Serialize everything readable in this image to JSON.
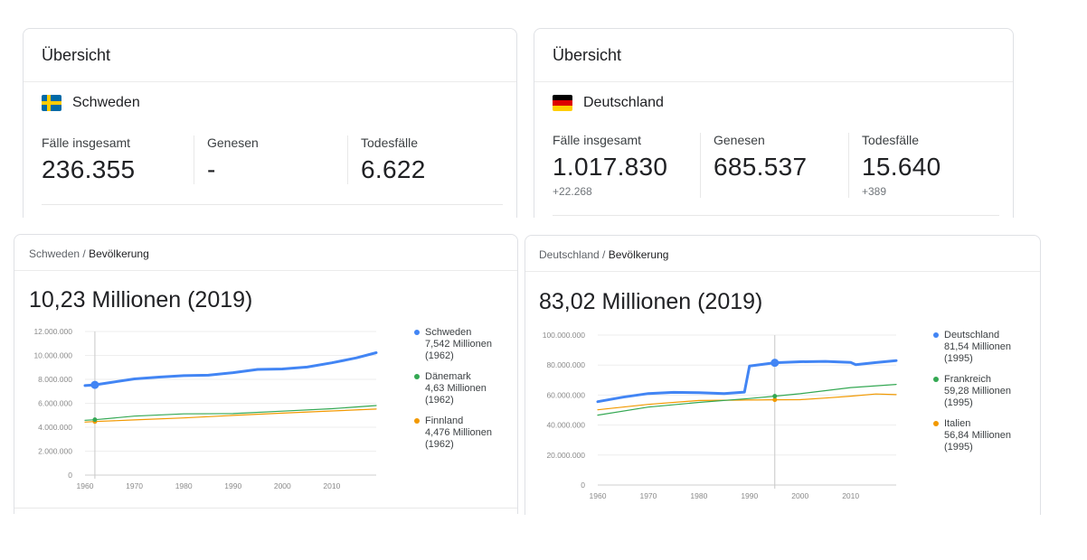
{
  "overview_se": {
    "title": "Übersicht",
    "country": "Schweden",
    "flag_icon": "sweden-flag-icon",
    "stats": [
      {
        "label": "Fälle insgesamt",
        "value": "236.355",
        "delta": ""
      },
      {
        "label": "Genesen",
        "value": "-",
        "delta": ""
      },
      {
        "label": "Todesfälle",
        "value": "6.622",
        "delta": ""
      }
    ]
  },
  "overview_de": {
    "title": "Übersicht",
    "country": "Deutschland",
    "flag_icon": "germany-flag-icon",
    "stats": [
      {
        "label": "Fälle insgesamt",
        "value": "1.017.830",
        "delta": "+22.268"
      },
      {
        "label": "Genesen",
        "value": "685.537",
        "delta": ""
      },
      {
        "label": "Todesfälle",
        "value": "15.640",
        "delta": "+389"
      }
    ]
  },
  "pop_se": {
    "breadcrumb_country": "Schweden",
    "breadcrumb_sep": " / ",
    "breadcrumb_topic": "Bevölkerung",
    "headline": "10,23 Millionen (2019)",
    "legend": [
      {
        "name": "Schweden",
        "value": "7,542 Millionen",
        "year": "(1962)",
        "color": "#4285f4"
      },
      {
        "name": "Dänemark",
        "value": "4,63 Millionen",
        "year": "(1962)",
        "color": "#34a853"
      },
      {
        "name": "Finnland",
        "value": "4,476 Millionen",
        "year": "(1962)",
        "color": "#f29900"
      }
    ]
  },
  "pop_de": {
    "breadcrumb_country": "Deutschland",
    "breadcrumb_sep": " / ",
    "breadcrumb_topic": "Bevölkerung",
    "headline": "83,02 Millionen (2019)",
    "legend": [
      {
        "name": "Deutschland",
        "value": "81,54 Millionen",
        "year": "(1995)",
        "color": "#4285f4"
      },
      {
        "name": "Frankreich",
        "value": "59,28 Millionen",
        "year": "(1995)",
        "color": "#34a853"
      },
      {
        "name": "Italien",
        "value": "56,84 Millionen",
        "year": "(1995)",
        "color": "#f29900"
      }
    ]
  },
  "chart_data": [
    {
      "type": "line",
      "ylim": [
        0,
        12000000
      ],
      "xlim": [
        1960,
        2019
      ],
      "y_ticks": [
        "0",
        "2.000.000",
        "4.000.000",
        "6.000.000",
        "8.000.000",
        "10.000.000",
        "12.000.000"
      ],
      "y_tick_values": [
        0,
        2000000,
        4000000,
        6000000,
        8000000,
        10000000,
        12000000
      ],
      "x_ticks": [
        "1960",
        "1970",
        "1980",
        "1990",
        "2000",
        "2010"
      ],
      "x_tick_values": [
        1960,
        1970,
        1980,
        1990,
        2000,
        2010
      ],
      "highlight_x": 1962,
      "series": [
        {
          "name": "Schweden",
          "color": "#4285f4",
          "width": 3,
          "x": [
            1960,
            1962,
            1965,
            1970,
            1975,
            1980,
            1985,
            1990,
            1995,
            2000,
            2005,
            2010,
            2015,
            2019
          ],
          "values": [
            7480000,
            7542000,
            7730000,
            8040000,
            8190000,
            8310000,
            8350000,
            8560000,
            8830000,
            8870000,
            9030000,
            9380000,
            9800000,
            10230000
          ]
        },
        {
          "name": "Dänemark",
          "color": "#34a853",
          "width": 1.2,
          "x": [
            1960,
            1962,
            1970,
            1980,
            1990,
            2000,
            2010,
            2019
          ],
          "values": [
            4580000,
            4630000,
            4930000,
            5120000,
            5140000,
            5340000,
            5550000,
            5810000
          ]
        },
        {
          "name": "Finnland",
          "color": "#f29900",
          "width": 1.2,
          "x": [
            1960,
            1962,
            1970,
            1980,
            1990,
            2000,
            2010,
            2019
          ],
          "values": [
            4430000,
            4476000,
            4610000,
            4780000,
            4990000,
            5180000,
            5360000,
            5520000
          ]
        }
      ]
    },
    {
      "type": "line",
      "ylim": [
        0,
        100000000
      ],
      "xlim": [
        1960,
        2019
      ],
      "y_ticks": [
        "0",
        "20.000.000",
        "40.000.000",
        "60.000.000",
        "80.000.000",
        "100.000.000"
      ],
      "y_tick_values": [
        0,
        20000000,
        40000000,
        60000000,
        80000000,
        100000000
      ],
      "x_ticks": [
        "1960",
        "1970",
        "1980",
        "1990",
        "2000",
        "2010"
      ],
      "x_tick_values": [
        1960,
        1970,
        1980,
        1990,
        2000,
        2010
      ],
      "highlight_x": 1995,
      "series": [
        {
          "name": "Deutschland",
          "color": "#4285f4",
          "width": 3,
          "x": [
            1960,
            1965,
            1970,
            1975,
            1980,
            1985,
            1989,
            1990,
            1995,
            2000,
            2005,
            2010,
            2011,
            2015,
            2019
          ],
          "values": [
            55600000,
            58600000,
            61000000,
            61800000,
            61600000,
            61000000,
            62000000,
            79400000,
            81540000,
            82200000,
            82500000,
            81800000,
            80300000,
            81700000,
            83020000
          ]
        },
        {
          "name": "Frankreich",
          "color": "#34a853",
          "width": 1.2,
          "x": [
            1960,
            1970,
            1980,
            1990,
            1995,
            2000,
            2010,
            2019
          ],
          "values": [
            46600000,
            52000000,
            55100000,
            57700000,
            59280000,
            60900000,
            65000000,
            67100000
          ]
        },
        {
          "name": "Italien",
          "color": "#f29900",
          "width": 1.2,
          "x": [
            1960,
            1970,
            1980,
            1990,
            1995,
            2000,
            2005,
            2010,
            2015,
            2019
          ],
          "values": [
            50200000,
            53800000,
            56400000,
            56700000,
            56840000,
            56900000,
            58000000,
            59300000,
            60700000,
            60300000
          ]
        }
      ]
    }
  ]
}
